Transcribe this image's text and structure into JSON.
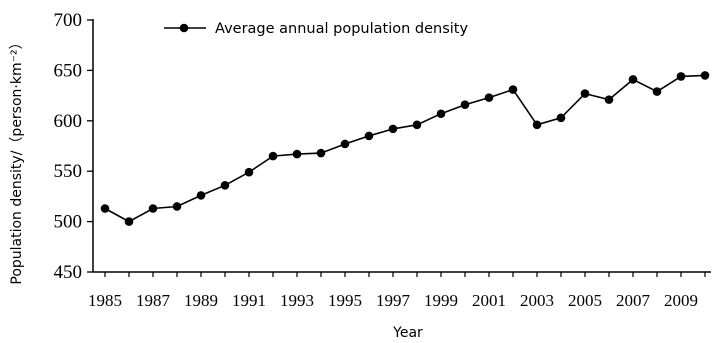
{
  "chart_data": {
    "type": "line",
    "xlabel": "Year",
    "ylabel": "Population density/（person·km⁻²）",
    "ylim": [
      450,
      700
    ],
    "yticks": [
      450,
      500,
      550,
      600,
      650,
      700
    ],
    "xlim": [
      1985,
      2010
    ],
    "xticks": [
      1985,
      1987,
      1989,
      1991,
      1993,
      1995,
      1997,
      1999,
      2001,
      2003,
      2005,
      2007,
      2009
    ],
    "legend_position": "top-left",
    "grid": false,
    "series": [
      {
        "name": "Average annual population density",
        "color": "#000000",
        "marker": "circle",
        "x": [
          1985,
          1986,
          1987,
          1988,
          1989,
          1990,
          1991,
          1992,
          1993,
          1994,
          1995,
          1996,
          1997,
          1998,
          1999,
          2000,
          2001,
          2002,
          2003,
          2004,
          2005,
          2006,
          2007,
          2008,
          2009,
          2010
        ],
        "y": [
          513,
          500,
          513,
          515,
          526,
          536,
          549,
          565,
          567,
          568,
          577,
          585,
          592,
          596,
          607,
          616,
          623,
          631,
          596,
          603,
          627,
          621,
          641,
          629,
          644,
          645
        ]
      }
    ]
  }
}
